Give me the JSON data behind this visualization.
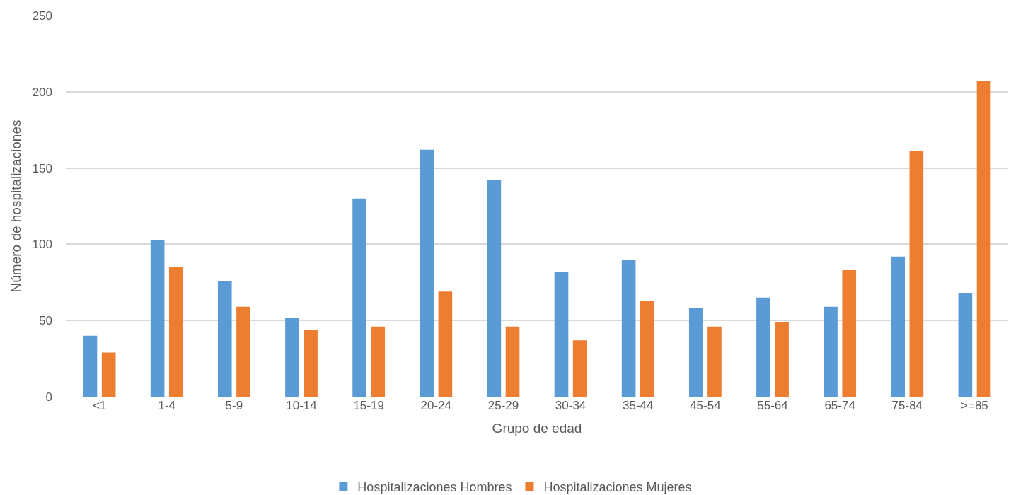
{
  "chart_data": {
    "type": "bar",
    "xlabel": "Grupo de edad",
    "ylabel": "Número de hospitalizaciones",
    "categories": [
      "<1",
      "1-4",
      "5-9",
      "10-14",
      "15-19",
      "20-24",
      "25-29",
      "30-34",
      "35-44",
      "45-54",
      "55-64",
      "65-74",
      "75-84",
      ">=85"
    ],
    "series": [
      {
        "name": "Hospitalizaciones Hombres",
        "color": "#5b9bd5",
        "values": [
          40,
          103,
          76,
          52,
          130,
          162,
          142,
          82,
          90,
          58,
          65,
          59,
          92,
          68
        ]
      },
      {
        "name": "Hospitalizaciones Mujeres",
        "color": "#ed7d31",
        "values": [
          29,
          85,
          59,
          44,
          46,
          69,
          46,
          37,
          63,
          46,
          49,
          83,
          161,
          207
        ]
      }
    ],
    "ylim": [
      0,
      250
    ],
    "yticks": [
      0,
      50,
      100,
      150,
      200,
      250
    ],
    "grid": "y",
    "legend": "bottom"
  }
}
